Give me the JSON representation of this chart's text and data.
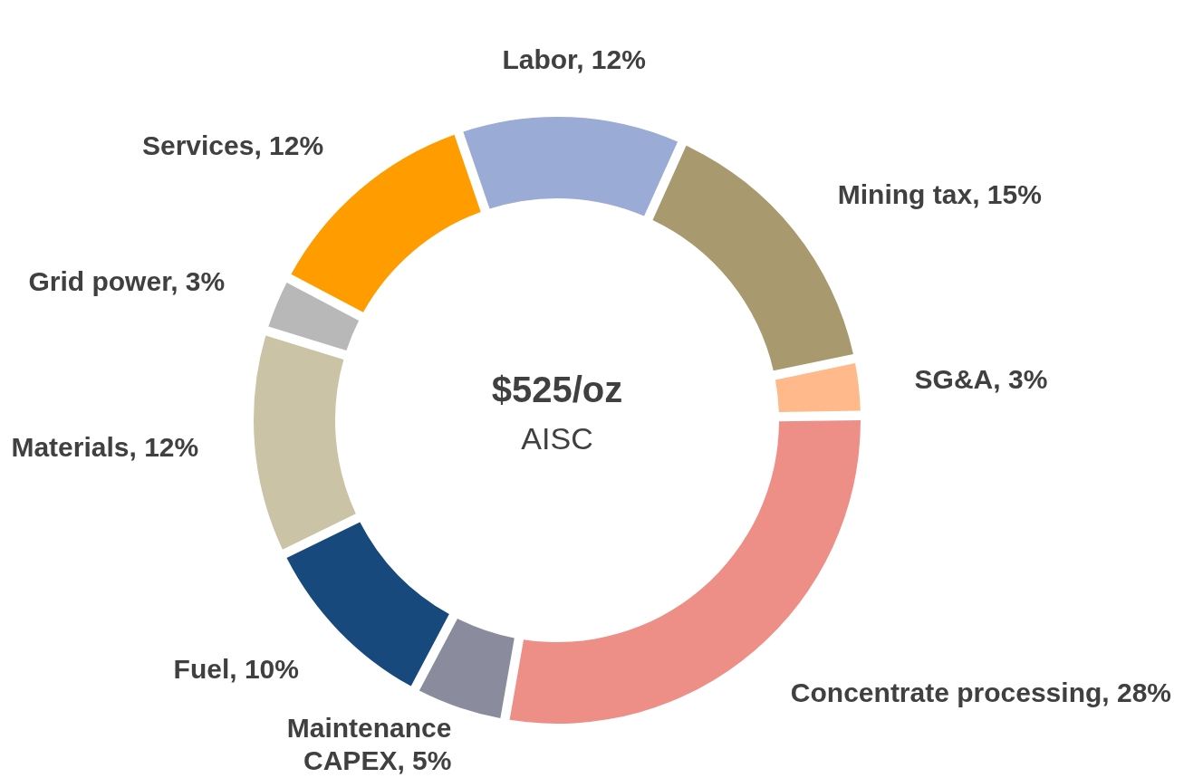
{
  "chart_data": {
    "type": "donut",
    "categories": [
      "Labor",
      "Mining tax",
      "SG&A",
      "Concentrate processing",
      "Maintenance CAPEX",
      "Fuel",
      "Materials",
      "Grid power",
      "Services"
    ],
    "values": [
      12,
      15,
      3,
      28,
      5,
      10,
      12,
      3,
      12
    ],
    "value_labels": [
      "12%",
      "15%",
      "3%",
      "28%",
      "5%",
      "10%",
      "12%",
      "3%",
      "12%"
    ],
    "colors": [
      "#9aabd6",
      "#a89a6e",
      "#ffb98a",
      "#ed8f87",
      "#8a8c9e",
      "#17497c",
      "#cbc3a6",
      "#b8b8b8",
      "#ff9c00"
    ],
    "annotations": [
      "$525/oz",
      "AISC"
    ]
  }
}
